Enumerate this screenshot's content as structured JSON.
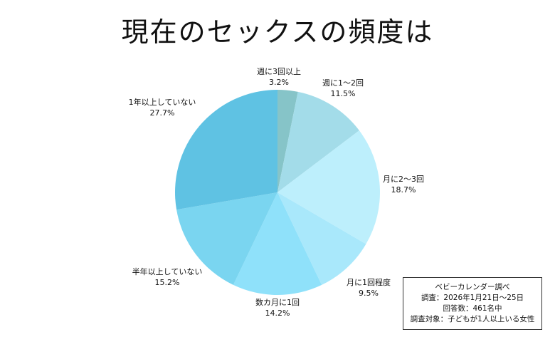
{
  "colors": {
    "slices": [
      "#86c4c8",
      "#a3dce9",
      "#bdeffc",
      "#a9e8fb",
      "#8fe1fa",
      "#7ad5f0",
      "#5fc2e3"
    ]
  },
  "chart_data": {
    "type": "pie",
    "title": "現在のセックスの頻度は",
    "slices": [
      {
        "label": "週に3回以上",
        "value": 3.2,
        "value_label": "3.2%"
      },
      {
        "label": "週に1～2回",
        "value": 11.5,
        "value_label": "11.5%"
      },
      {
        "label": "月に2～3回",
        "value": 18.7,
        "value_label": "18.7%"
      },
      {
        "label": "月に1回程度",
        "value": 9.5,
        "value_label": "9.5%"
      },
      {
        "label": "数カ月に1回",
        "value": 14.2,
        "value_label": "14.2%"
      },
      {
        "label": "半年以上していない",
        "value": 15.2,
        "value_label": "15.2%"
      },
      {
        "label": "1年以上していない",
        "value": 27.7,
        "value_label": "27.7%"
      }
    ],
    "start_angle_deg": 0,
    "direction": "clockwise",
    "legend": "none"
  },
  "source": {
    "lines": [
      "ベビーカレンダー調べ",
      "調査：2026年1月21日～25日",
      "回答数：461名中",
      "調査対象：子どもが1人以上いる女性"
    ]
  }
}
